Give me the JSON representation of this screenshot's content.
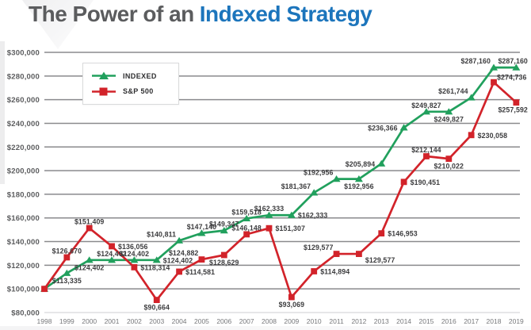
{
  "title": {
    "prefix": "The Power of an",
    "highlight": "Indexed Strategy"
  },
  "legend": {
    "items": [
      {
        "label": "INDEXED",
        "series": "indexed"
      },
      {
        "label": "S&P 500",
        "series": "sp500"
      }
    ]
  },
  "colors": {
    "title_gray": "#5b5c5e",
    "title_blue": "#1c75bc",
    "indexed_green": "#21a05d",
    "sp500_red": "#d2232a",
    "grid": "#8a8a8d",
    "grid_light": "#d7d7d9",
    "axis_text": "#5b5c5e",
    "data_label_text": "#3c3c3e"
  },
  "chart_data": {
    "type": "line",
    "title": "The Power of an Indexed Strategy",
    "x": [
      1998,
      1999,
      2000,
      2001,
      2002,
      2003,
      2004,
      2005,
      2006,
      2007,
      2008,
      2009,
      2010,
      2011,
      2012,
      2013,
      2014,
      2015,
      2016,
      2017,
      2018,
      2019
    ],
    "ylim": [
      80000,
      300000
    ],
    "ytick_step": 20000,
    "ytick_labels": [
      "$80,000",
      "$100,000",
      "$120,000",
      "$140,000",
      "$160,000",
      "$180,000",
      "$200,000",
      "$220,000",
      "$240,000",
      "$260,000",
      "$280,000",
      "$300,000"
    ],
    "grid": "horizontal",
    "legend_position": "upper-left",
    "series": [
      {
        "name": "INDEXED",
        "color": "#21a05d",
        "marker": "triangle",
        "values": [
          100000,
          113335,
          124402,
          124402,
          124402,
          124402,
          140811,
          147140,
          149347,
          159518,
          162333,
          162333,
          181367,
          192956,
          192956,
          205894,
          236366,
          249827,
          249827,
          261744,
          287160,
          287160
        ],
        "point_labels": [
          null,
          "$113,335",
          "$124,402",
          "$124,402",
          "$124,402",
          "$124,402",
          "$140,811",
          "$147,140",
          "$149,347",
          "$159,518",
          "$162,333",
          "$162,333",
          "$181,367",
          "$192,956",
          "$192,956",
          "$205,894",
          "$236,366",
          "$249,827",
          "$249,827",
          "$261,744",
          "$287,160",
          "$287,160"
        ],
        "label_positions": [
          null,
          "s",
          "s",
          "n",
          "n",
          "e",
          "nw",
          "n",
          "n",
          "n",
          "n",
          "e",
          "nw",
          "nw",
          "s",
          "w",
          "w",
          "n",
          "s",
          "nw",
          "nw",
          "n"
        ]
      },
      {
        "name": "S&P 500",
        "color": "#d2232a",
        "marker": "square",
        "values": [
          100000,
          126670,
          151409,
          136056,
          118314,
          90664,
          114581,
          124882,
          128629,
          146148,
          151307,
          93069,
          114894,
          129577,
          129577,
          146953,
          190451,
          212144,
          210022,
          230058,
          274736,
          257592
        ],
        "point_labels": [
          null,
          "$126,670",
          "$151,409",
          "$136,056",
          "$118,314",
          "$90,664",
          "$114,581",
          "$124,882",
          "$128,629",
          "$146,148",
          "$151,307",
          "$93,069",
          "$114,894",
          "$129,577",
          "$129,577",
          "$146,953",
          "$190,451",
          "$212,144",
          "$210,022",
          "$230,058",
          "$274,736",
          "$257,592"
        ],
        "label_positions": [
          null,
          "n",
          "n",
          "e",
          "e",
          "s",
          "e",
          "nw",
          "s",
          "n",
          "e",
          "s",
          "e",
          "nw",
          "se",
          "e",
          "e",
          "n",
          "s",
          "e",
          "ne",
          "s"
        ]
      }
    ]
  }
}
